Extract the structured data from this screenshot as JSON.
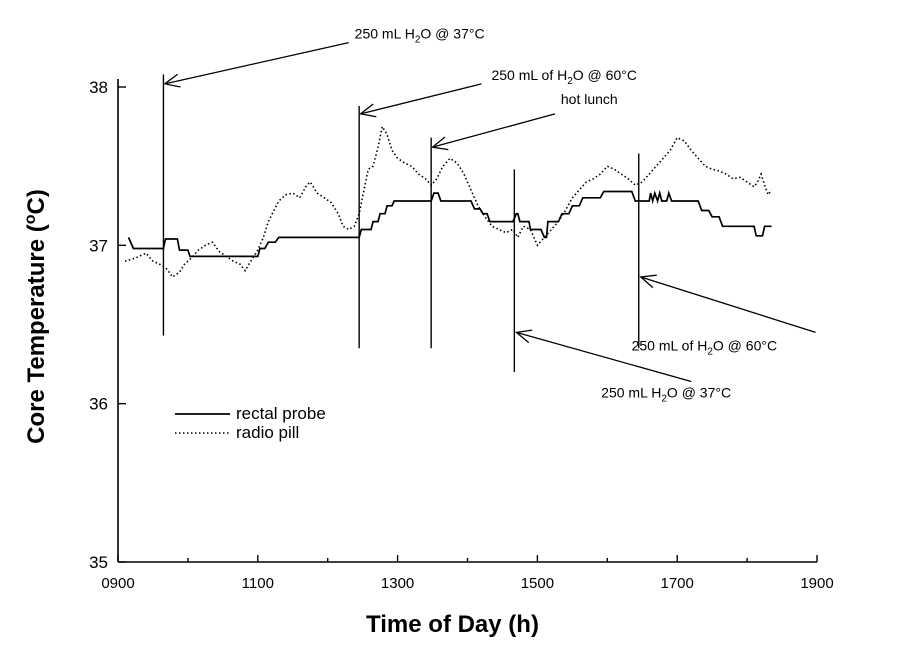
{
  "chart_data": {
    "type": "line",
    "xlabel": "Time of Day (h)",
    "ylabel": "Core Temperature (°C)",
    "xlim": [
      900,
      1900
    ],
    "ylim": [
      35,
      38
    ],
    "x_ticks": [
      900,
      1100,
      1300,
      1500,
      1700,
      1900
    ],
    "x_tick_labels": [
      "0900",
      "1100",
      "1300",
      "1500",
      "1700",
      "1900"
    ],
    "y_ticks": [
      35,
      36,
      37,
      38
    ],
    "y_tick_labels": [
      "35",
      "36",
      "37",
      "38"
    ],
    "grid": false,
    "legend_position": "lower-left",
    "series": [
      {
        "name": "rectal probe",
        "style": "solid",
        "step": true,
        "points": [
          [
            915,
            37.05
          ],
          [
            922,
            36.98
          ],
          [
            965,
            36.98
          ],
          [
            968,
            37.04
          ],
          [
            985,
            37.04
          ],
          [
            988,
            36.97
          ],
          [
            1000,
            36.97
          ],
          [
            1003,
            36.93
          ],
          [
            1100,
            36.93
          ],
          [
            1103,
            36.98
          ],
          [
            1110,
            36.98
          ],
          [
            1115,
            37.02
          ],
          [
            1125,
            37.02
          ],
          [
            1130,
            37.05
          ],
          [
            1245,
            37.05
          ],
          [
            1248,
            37.1
          ],
          [
            1262,
            37.1
          ],
          [
            1265,
            37.15
          ],
          [
            1272,
            37.15
          ],
          [
            1275,
            37.2
          ],
          [
            1282,
            37.2
          ],
          [
            1285,
            37.25
          ],
          [
            1292,
            37.25
          ],
          [
            1295,
            37.28
          ],
          [
            1348,
            37.28
          ],
          [
            1352,
            37.33
          ],
          [
            1358,
            37.33
          ],
          [
            1362,
            37.28
          ],
          [
            1405,
            37.28
          ],
          [
            1410,
            37.23
          ],
          [
            1418,
            37.23
          ],
          [
            1422,
            37.2
          ],
          [
            1428,
            37.2
          ],
          [
            1432,
            37.15
          ],
          [
            1465,
            37.15
          ],
          [
            1470,
            37.2
          ],
          [
            1472,
            37.2
          ],
          [
            1475,
            37.15
          ],
          [
            1488,
            37.15
          ],
          [
            1490,
            37.1
          ],
          [
            1505,
            37.1
          ],
          [
            1510,
            37.05
          ],
          [
            1513,
            37.05
          ],
          [
            1515,
            37.15
          ],
          [
            1530,
            37.15
          ],
          [
            1535,
            37.2
          ],
          [
            1545,
            37.2
          ],
          [
            1550,
            37.25
          ],
          [
            1560,
            37.25
          ],
          [
            1565,
            37.3
          ],
          [
            1590,
            37.3
          ],
          [
            1595,
            37.34
          ],
          [
            1635,
            37.34
          ],
          [
            1640,
            37.28
          ],
          [
            1660,
            37.28
          ],
          [
            1662,
            37.33
          ],
          [
            1665,
            37.28
          ],
          [
            1668,
            37.33
          ],
          [
            1672,
            37.28
          ],
          [
            1675,
            37.33
          ],
          [
            1678,
            37.28
          ],
          [
            1685,
            37.28
          ],
          [
            1688,
            37.33
          ],
          [
            1692,
            37.28
          ],
          [
            1730,
            37.28
          ],
          [
            1735,
            37.22
          ],
          [
            1745,
            37.22
          ],
          [
            1750,
            37.18
          ],
          [
            1760,
            37.18
          ],
          [
            1765,
            37.12
          ],
          [
            1810,
            37.12
          ],
          [
            1813,
            37.06
          ],
          [
            1822,
            37.06
          ],
          [
            1825,
            37.12
          ],
          [
            1835,
            37.12
          ]
        ]
      },
      {
        "name": "radio pill",
        "style": "dotted",
        "step": false,
        "points": [
          [
            910,
            36.9
          ],
          [
            925,
            36.92
          ],
          [
            940,
            36.95
          ],
          [
            950,
            36.9
          ],
          [
            960,
            36.88
          ],
          [
            970,
            36.85
          ],
          [
            978,
            36.8
          ],
          [
            988,
            36.83
          ],
          [
            995,
            36.88
          ],
          [
            1005,
            36.92
          ],
          [
            1015,
            36.97
          ],
          [
            1025,
            37.0
          ],
          [
            1035,
            37.02
          ],
          [
            1045,
            36.96
          ],
          [
            1055,
            36.93
          ],
          [
            1065,
            36.9
          ],
          [
            1075,
            36.88
          ],
          [
            1082,
            36.84
          ],
          [
            1090,
            36.9
          ],
          [
            1100,
            36.97
          ],
          [
            1108,
            37.05
          ],
          [
            1115,
            37.15
          ],
          [
            1123,
            37.22
          ],
          [
            1130,
            37.28
          ],
          [
            1140,
            37.32
          ],
          [
            1150,
            37.33
          ],
          [
            1160,
            37.3
          ],
          [
            1170,
            37.38
          ],
          [
            1175,
            37.4
          ],
          [
            1185,
            37.33
          ],
          [
            1195,
            37.3
          ],
          [
            1205,
            37.27
          ],
          [
            1215,
            37.2
          ],
          [
            1222,
            37.12
          ],
          [
            1230,
            37.1
          ],
          [
            1238,
            37.12
          ],
          [
            1245,
            37.2
          ],
          [
            1252,
            37.35
          ],
          [
            1258,
            37.48
          ],
          [
            1265,
            37.5
          ],
          [
            1272,
            37.62
          ],
          [
            1278,
            37.75
          ],
          [
            1285,
            37.7
          ],
          [
            1292,
            37.6
          ],
          [
            1300,
            37.55
          ],
          [
            1310,
            37.52
          ],
          [
            1320,
            37.5
          ],
          [
            1330,
            37.45
          ],
          [
            1340,
            37.42
          ],
          [
            1348,
            37.38
          ],
          [
            1356,
            37.42
          ],
          [
            1365,
            37.5
          ],
          [
            1375,
            37.55
          ],
          [
            1385,
            37.52
          ],
          [
            1395,
            37.45
          ],
          [
            1405,
            37.35
          ],
          [
            1415,
            37.25
          ],
          [
            1425,
            37.18
          ],
          [
            1435,
            37.12
          ],
          [
            1445,
            37.1
          ],
          [
            1455,
            37.08
          ],
          [
            1465,
            37.1
          ],
          [
            1472,
            37.05
          ],
          [
            1480,
            37.12
          ],
          [
            1490,
            37.1
          ],
          [
            1500,
            37.0
          ],
          [
            1510,
            37.05
          ],
          [
            1520,
            37.1
          ],
          [
            1530,
            37.15
          ],
          [
            1540,
            37.22
          ],
          [
            1550,
            37.3
          ],
          [
            1560,
            37.35
          ],
          [
            1570,
            37.4
          ],
          [
            1580,
            37.42
          ],
          [
            1590,
            37.45
          ],
          [
            1600,
            37.5
          ],
          [
            1610,
            37.48
          ],
          [
            1620,
            37.45
          ],
          [
            1630,
            37.42
          ],
          [
            1640,
            37.38
          ],
          [
            1650,
            37.4
          ],
          [
            1660,
            37.45
          ],
          [
            1670,
            37.5
          ],
          [
            1680,
            37.55
          ],
          [
            1690,
            37.6
          ],
          [
            1700,
            37.68
          ],
          [
            1710,
            37.66
          ],
          [
            1720,
            37.6
          ],
          [
            1730,
            37.55
          ],
          [
            1740,
            37.5
          ],
          [
            1750,
            37.48
          ],
          [
            1760,
            37.47
          ],
          [
            1770,
            37.45
          ],
          [
            1780,
            37.42
          ],
          [
            1790,
            37.43
          ],
          [
            1800,
            37.4
          ],
          [
            1810,
            37.37
          ],
          [
            1815,
            37.4
          ],
          [
            1820,
            37.45
          ],
          [
            1825,
            37.38
          ],
          [
            1830,
            37.32
          ],
          [
            1835,
            37.35
          ]
        ]
      }
    ],
    "markers": [
      {
        "x": 965,
        "y_top": 38.08,
        "y_bottom": 36.43
      },
      {
        "x": 1245,
        "y_top": 37.88,
        "y_bottom": 36.35
      },
      {
        "x": 1348,
        "y_top": 37.68,
        "y_bottom": 36.35
      },
      {
        "x": 1467,
        "y_top": 37.48,
        "y_bottom": 36.2
      },
      {
        "x": 1645,
        "y_top": 37.58,
        "y_bottom": 36.35
      }
    ],
    "annotations": [
      {
        "text": "250 mL H₂O @ 37°C",
        "marker": 0,
        "arrow_from": [
          1230,
          38.28
        ],
        "arrow_to": [
          967,
          38.02
        ]
      },
      {
        "text": "250 mL of H₂O @ 60°C",
        "marker": 1,
        "arrow_from": [
          1420,
          38.02
        ],
        "arrow_to": [
          1247,
          37.83
        ]
      },
      {
        "text": "hot lunch",
        "marker": 2,
        "arrow_from": [
          1525,
          37.83
        ],
        "arrow_to": [
          1350,
          37.62
        ]
      },
      {
        "text": "250 mL H₂O @ 37°C",
        "marker": 3,
        "arrow_from": [
          1720,
          36.14
        ],
        "arrow_to": [
          1470,
          36.45
        ]
      },
      {
        "text": "250 mL of H₂O @ 60°C",
        "marker": 4,
        "arrow_from": [
          1898,
          36.45
        ],
        "arrow_to": [
          1648,
          36.8
        ]
      }
    ]
  }
}
